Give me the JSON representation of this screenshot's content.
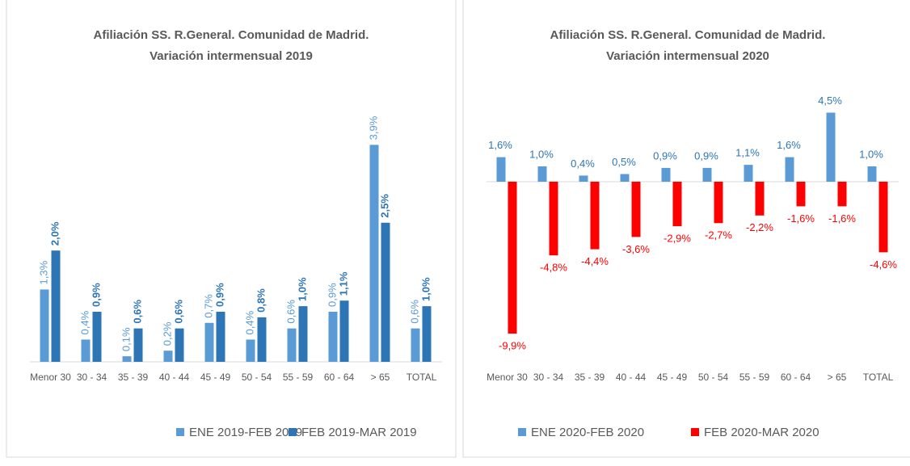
{
  "chart_data": [
    {
      "type": "bar",
      "title": "Afiliación SS. R.General. Comunidad de Madrid.",
      "subtitle": "Variación intermensual 2019",
      "categories": [
        "Menor 30",
        "30 - 34",
        "35 - 39",
        "40 - 44",
        "45 - 49",
        "50 - 54",
        "55 - 59",
        "60 - 64",
        "> 65",
        "TOTAL"
      ],
      "series": [
        {
          "name": "ENE 2019-FEB 2019",
          "color": "#5b9bd5",
          "values": [
            1.3,
            0.4,
            0.1,
            0.2,
            0.7,
            0.4,
            0.6,
            0.9,
            3.9,
            0.6
          ],
          "value_labels": [
            "1,3%",
            "0,4%",
            "0,1%",
            "0,2%",
            "0,7%",
            "0,4%",
            "0,6%",
            "0,9%",
            "3,9%",
            "0,6%"
          ]
        },
        {
          "name": "FEB 2019-MAR 2019",
          "color": "#2e75b6",
          "values": [
            2.0,
            0.9,
            0.6,
            0.6,
            0.9,
            0.8,
            1.0,
            1.1,
            2.5,
            1.0
          ],
          "value_labels": [
            "2,0%",
            "0,9%",
            "0,6%",
            "0,6%",
            "0,9%",
            "0,8%",
            "1,0%",
            "1,1%",
            "2,5%",
            "1,0%"
          ]
        }
      ],
      "ylim": [
        0,
        4.5
      ],
      "legend": "bottom"
    },
    {
      "type": "bar",
      "title": "Afiliación SS. R.General. Comunidad de Madrid.",
      "subtitle": "Variación intermensual 2020",
      "categories": [
        "Menor 30",
        "30 - 34",
        "35 - 39",
        "40 - 44",
        "45 - 49",
        "50 - 54",
        "55 - 59",
        "60 - 64",
        "> 65",
        "TOTAL"
      ],
      "series": [
        {
          "name": "ENE 2020-FEB 2020",
          "color": "#5b9bd5",
          "values": [
            1.6,
            1.0,
            0.4,
            0.5,
            0.9,
            0.9,
            1.1,
            1.6,
            4.5,
            1.0
          ],
          "value_labels": [
            "1,6%",
            "1,0%",
            "0,4%",
            "0,5%",
            "0,9%",
            "0,9%",
            "1,1%",
            "1,6%",
            "4,5%",
            "1,0%"
          ]
        },
        {
          "name": "FEB 2020-MAR 2020",
          "color": "#ff0000",
          "values": [
            -9.9,
            -4.8,
            -4.4,
            -3.6,
            -2.9,
            -2.7,
            -2.2,
            -1.6,
            -1.6,
            -4.6
          ],
          "value_labels": [
            "-9,9%",
            "-4,8%",
            "-4,4%",
            "-3,6%",
            "-2,9%",
            "-2,7%",
            "-2,2%",
            "-1,6%",
            "-1,6%",
            "-4,6%"
          ]
        }
      ],
      "ylim": [
        -12,
        6
      ],
      "legend": "bottom"
    }
  ]
}
